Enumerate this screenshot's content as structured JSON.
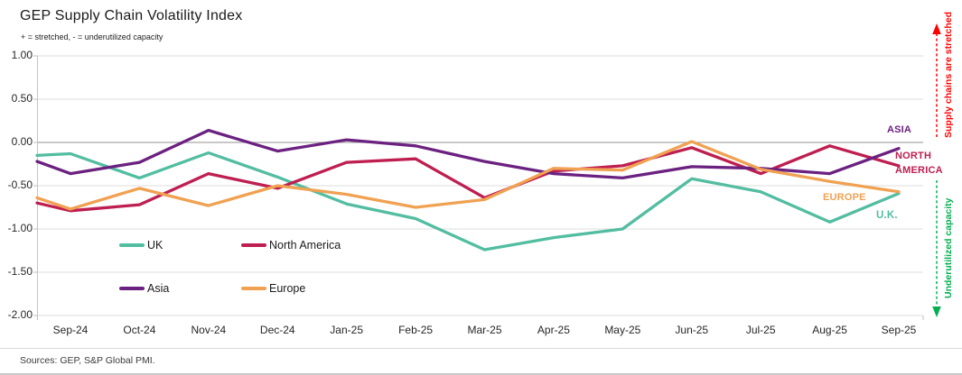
{
  "header": {
    "title": "GEP Supply Chain Volatility Index",
    "subtitle": "+ = stretched, - = underutilized capacity"
  },
  "footer": {
    "source": "Sources: GEP, S&P Global PMI."
  },
  "right_labels": {
    "asia": "ASIA",
    "north_america": "NORTH AMERICA",
    "europe": "EUROPE",
    "uk": "U.K."
  },
  "annotations": {
    "stretched": "Supply chains are stretched",
    "stretched_color": "#ff0000",
    "underutilized": "Underutilized capacity",
    "underutilized_color": "#00b050"
  },
  "chart_data": {
    "type": "line",
    "title": "GEP Supply Chain Volatility Index",
    "categories": [
      "Sep-24",
      "Oct-24",
      "Nov-24",
      "Dec-24",
      "Jan-25",
      "Feb-25",
      "Mar-25",
      "Apr-25",
      "May-25",
      "Jun-25",
      "Jul-25",
      "Aug-25",
      "Sep-25"
    ],
    "series": [
      {
        "name": "UK",
        "color": "#52bda1",
        "edge_value": -0.15,
        "values": [
          -0.13,
          -0.41,
          -0.12,
          -0.4,
          -0.71,
          -0.88,
          -1.24,
          -1.1,
          -1.0,
          -0.42,
          -0.57,
          -0.92,
          -0.59
        ]
      },
      {
        "name": "North America",
        "color": "#be1e50",
        "edge_value": -0.7,
        "values": [
          -0.79,
          -0.72,
          -0.36,
          -0.53,
          -0.23,
          -0.19,
          -0.64,
          -0.33,
          -0.27,
          -0.06,
          -0.36,
          -0.04,
          -0.27
        ]
      },
      {
        "name": "Asia",
        "color": "#6b2180",
        "edge_value": -0.22,
        "values": [
          -0.36,
          -0.23,
          0.14,
          -0.1,
          0.03,
          -0.04,
          -0.22,
          -0.36,
          -0.41,
          -0.28,
          -0.3,
          -0.36,
          -0.07
        ]
      },
      {
        "name": "Europe",
        "color": "#f0a152",
        "edge_value": -0.64,
        "values": [
          -0.77,
          -0.53,
          -0.73,
          -0.5,
          -0.6,
          -0.75,
          -0.66,
          -0.3,
          -0.32,
          0.01,
          -0.31,
          -0.45,
          -0.57
        ]
      }
    ],
    "yticks": [
      "1.00",
      "0.50",
      "0.00",
      "-0.50",
      "-1.00",
      "-1.50",
      "-2.00"
    ],
    "ylim": [
      -2.0,
      1.0
    ],
    "grid": true,
    "legend_position": "inside bottom-left",
    "zero_line": true
  }
}
